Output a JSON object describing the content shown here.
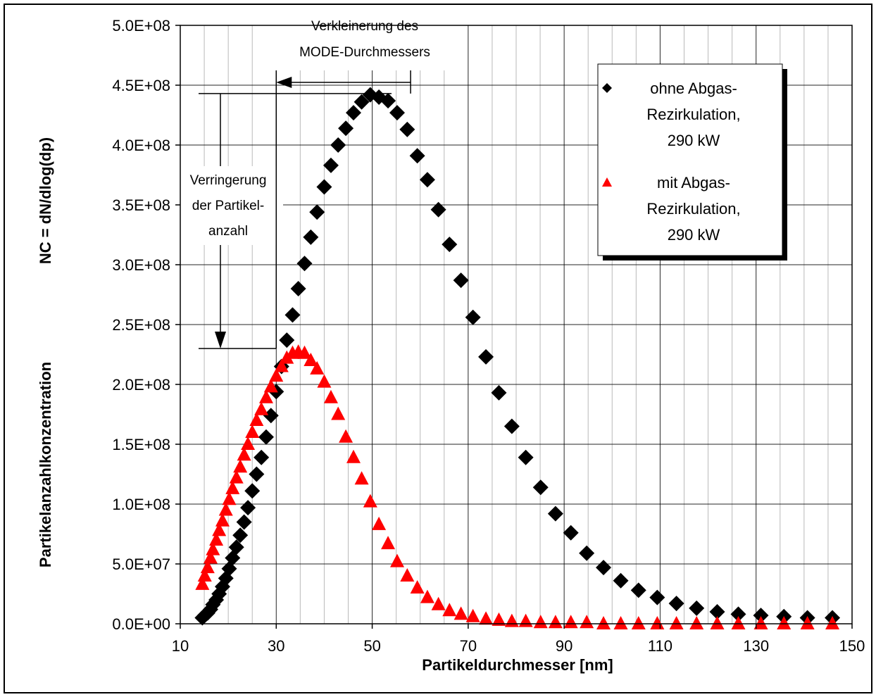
{
  "chart_data": {
    "type": "scatter",
    "xlabel": "Partikeldurchmesser [nm]",
    "ylabel_main": "Partikelanzahlkonzentration",
    "ylabel_formula": "NC = dN/dlog(dp)",
    "xlim": [
      10,
      150
    ],
    "ylim": [
      0,
      500000000
    ],
    "x_ticks": [
      10,
      30,
      50,
      70,
      90,
      110,
      130,
      150
    ],
    "x_tick_labels": [
      "10",
      "30",
      "50",
      "70",
      "90",
      "110",
      "130",
      "150"
    ],
    "y_ticks": [
      0,
      50000000,
      100000000,
      150000000,
      200000000,
      250000000,
      300000000,
      350000000,
      400000000,
      450000000,
      500000000
    ],
    "y_tick_labels": [
      "0.0E+00",
      "5.0E+07",
      "1.0E+08",
      "1.5E+08",
      "2.0E+08",
      "2.5E+08",
      "3.0E+08",
      "3.5E+08",
      "4.0E+08",
      "4.5E+08",
      "5.0E+08"
    ],
    "grid": true,
    "legend_position": "top-right",
    "series": [
      {
        "name_lines": [
          "ohne Abgas-",
          "Rezirkulation,",
          "290 kW"
        ],
        "marker": "diamond",
        "color": "#000000",
        "x": [
          14.6,
          15.1,
          15.7,
          16.3,
          16.8,
          17.5,
          18.1,
          18.8,
          19.5,
          20.2,
          20.9,
          21.7,
          22.5,
          23.3,
          24.1,
          25.0,
          25.9,
          26.9,
          27.9,
          28.9,
          30.0,
          31.1,
          32.2,
          33.4,
          34.6,
          35.9,
          37.2,
          38.5,
          40.0,
          41.4,
          42.9,
          44.5,
          46.1,
          47.8,
          49.6,
          51.4,
          53.3,
          55.2,
          57.3,
          59.4,
          61.5,
          63.8,
          66.1,
          68.5,
          71.0,
          73.7,
          76.4,
          79.1,
          82.0,
          85.1,
          88.2,
          91.4,
          94.7,
          98.2,
          101.8,
          105.5,
          109.4,
          113.4,
          117.6,
          121.9,
          126.3,
          131.0,
          135.8,
          140.7,
          145.9
        ],
        "y": [
          5000000,
          7000000,
          9000000,
          12000000,
          16000000,
          20000000,
          25000000,
          31000000,
          38000000,
          46000000,
          55000000,
          64000000,
          74000000,
          85000000,
          97000000,
          111000000,
          125000000,
          139000000,
          156000000,
          174000000,
          194000000,
          215000000,
          237000000,
          258000000,
          280000000,
          301000000,
          323000000,
          344000000,
          365000000,
          383000000,
          400000000,
          414000000,
          427000000,
          436000000,
          442000000,
          440000000,
          437000000,
          427000000,
          413000000,
          391000000,
          371000000,
          346000000,
          317000000,
          287000000,
          256000000,
          223000000,
          193000000,
          165000000,
          139000000,
          114000000,
          92000000,
          76000000,
          59000000,
          47000000,
          36000000,
          28000000,
          22000000,
          17000000,
          13000000,
          10000000,
          8000000,
          7000000,
          6000000,
          5000000,
          5000000
        ]
      },
      {
        "name_lines": [
          "mit Abgas-",
          "Rezirkulation,",
          "290 kW"
        ],
        "marker": "triangle",
        "color": "#ff0000",
        "x": [
          14.6,
          15.1,
          15.7,
          16.3,
          16.8,
          17.5,
          18.1,
          18.8,
          19.5,
          20.2,
          20.9,
          21.7,
          22.5,
          23.3,
          24.1,
          25.0,
          25.9,
          26.9,
          27.9,
          28.9,
          30.0,
          31.1,
          32.2,
          33.4,
          34.6,
          35.9,
          37.2,
          38.5,
          40.0,
          41.4,
          42.9,
          44.5,
          46.1,
          47.8,
          49.6,
          51.4,
          53.3,
          55.2,
          57.3,
          59.4,
          61.5,
          63.8,
          66.1,
          68.5,
          71.0,
          73.7,
          76.4,
          79.1,
          82.0,
          85.1,
          88.2,
          91.4,
          94.7,
          98.2,
          101.8,
          105.5,
          109.4,
          113.4,
          117.6,
          121.9,
          126.3,
          131.0,
          135.8,
          140.7,
          145.9
        ],
        "y": [
          33000000,
          40000000,
          47000000,
          55000000,
          62000000,
          70000000,
          78000000,
          86000000,
          95000000,
          104000000,
          113000000,
          122000000,
          131000000,
          141000000,
          150000000,
          160000000,
          170000000,
          179000000,
          189000000,
          198000000,
          207000000,
          215000000,
          222000000,
          226000000,
          227000000,
          226000000,
          220000000,
          213000000,
          202000000,
          189000000,
          175000000,
          156000000,
          139000000,
          121000000,
          102000000,
          83000000,
          67000000,
          52000000,
          40000000,
          30000000,
          22000000,
          16000000,
          11000000,
          8000000,
          6000000,
          4000000,
          3000000,
          2000000,
          2000000,
          1000000,
          1000000,
          1000000,
          1000000,
          0,
          0,
          0,
          0,
          0,
          0,
          0,
          0,
          0,
          0,
          0,
          0
        ]
      }
    ],
    "annotations": {
      "mode_shift_lines": [
        "Verkleinerung des",
        "MODE-Durchmessers"
      ],
      "count_reduction_lines": [
        "Verringerung",
        "der Partikel-",
        "anzahl"
      ],
      "peak_high_y": 443000000,
      "peak_low_y": 230000000,
      "mode_arrow_from_x": 58,
      "mode_arrow_to_x": 30
    }
  },
  "colors": {
    "background": "#ffffff",
    "grid": "#808080",
    "axis": "#000000"
  }
}
